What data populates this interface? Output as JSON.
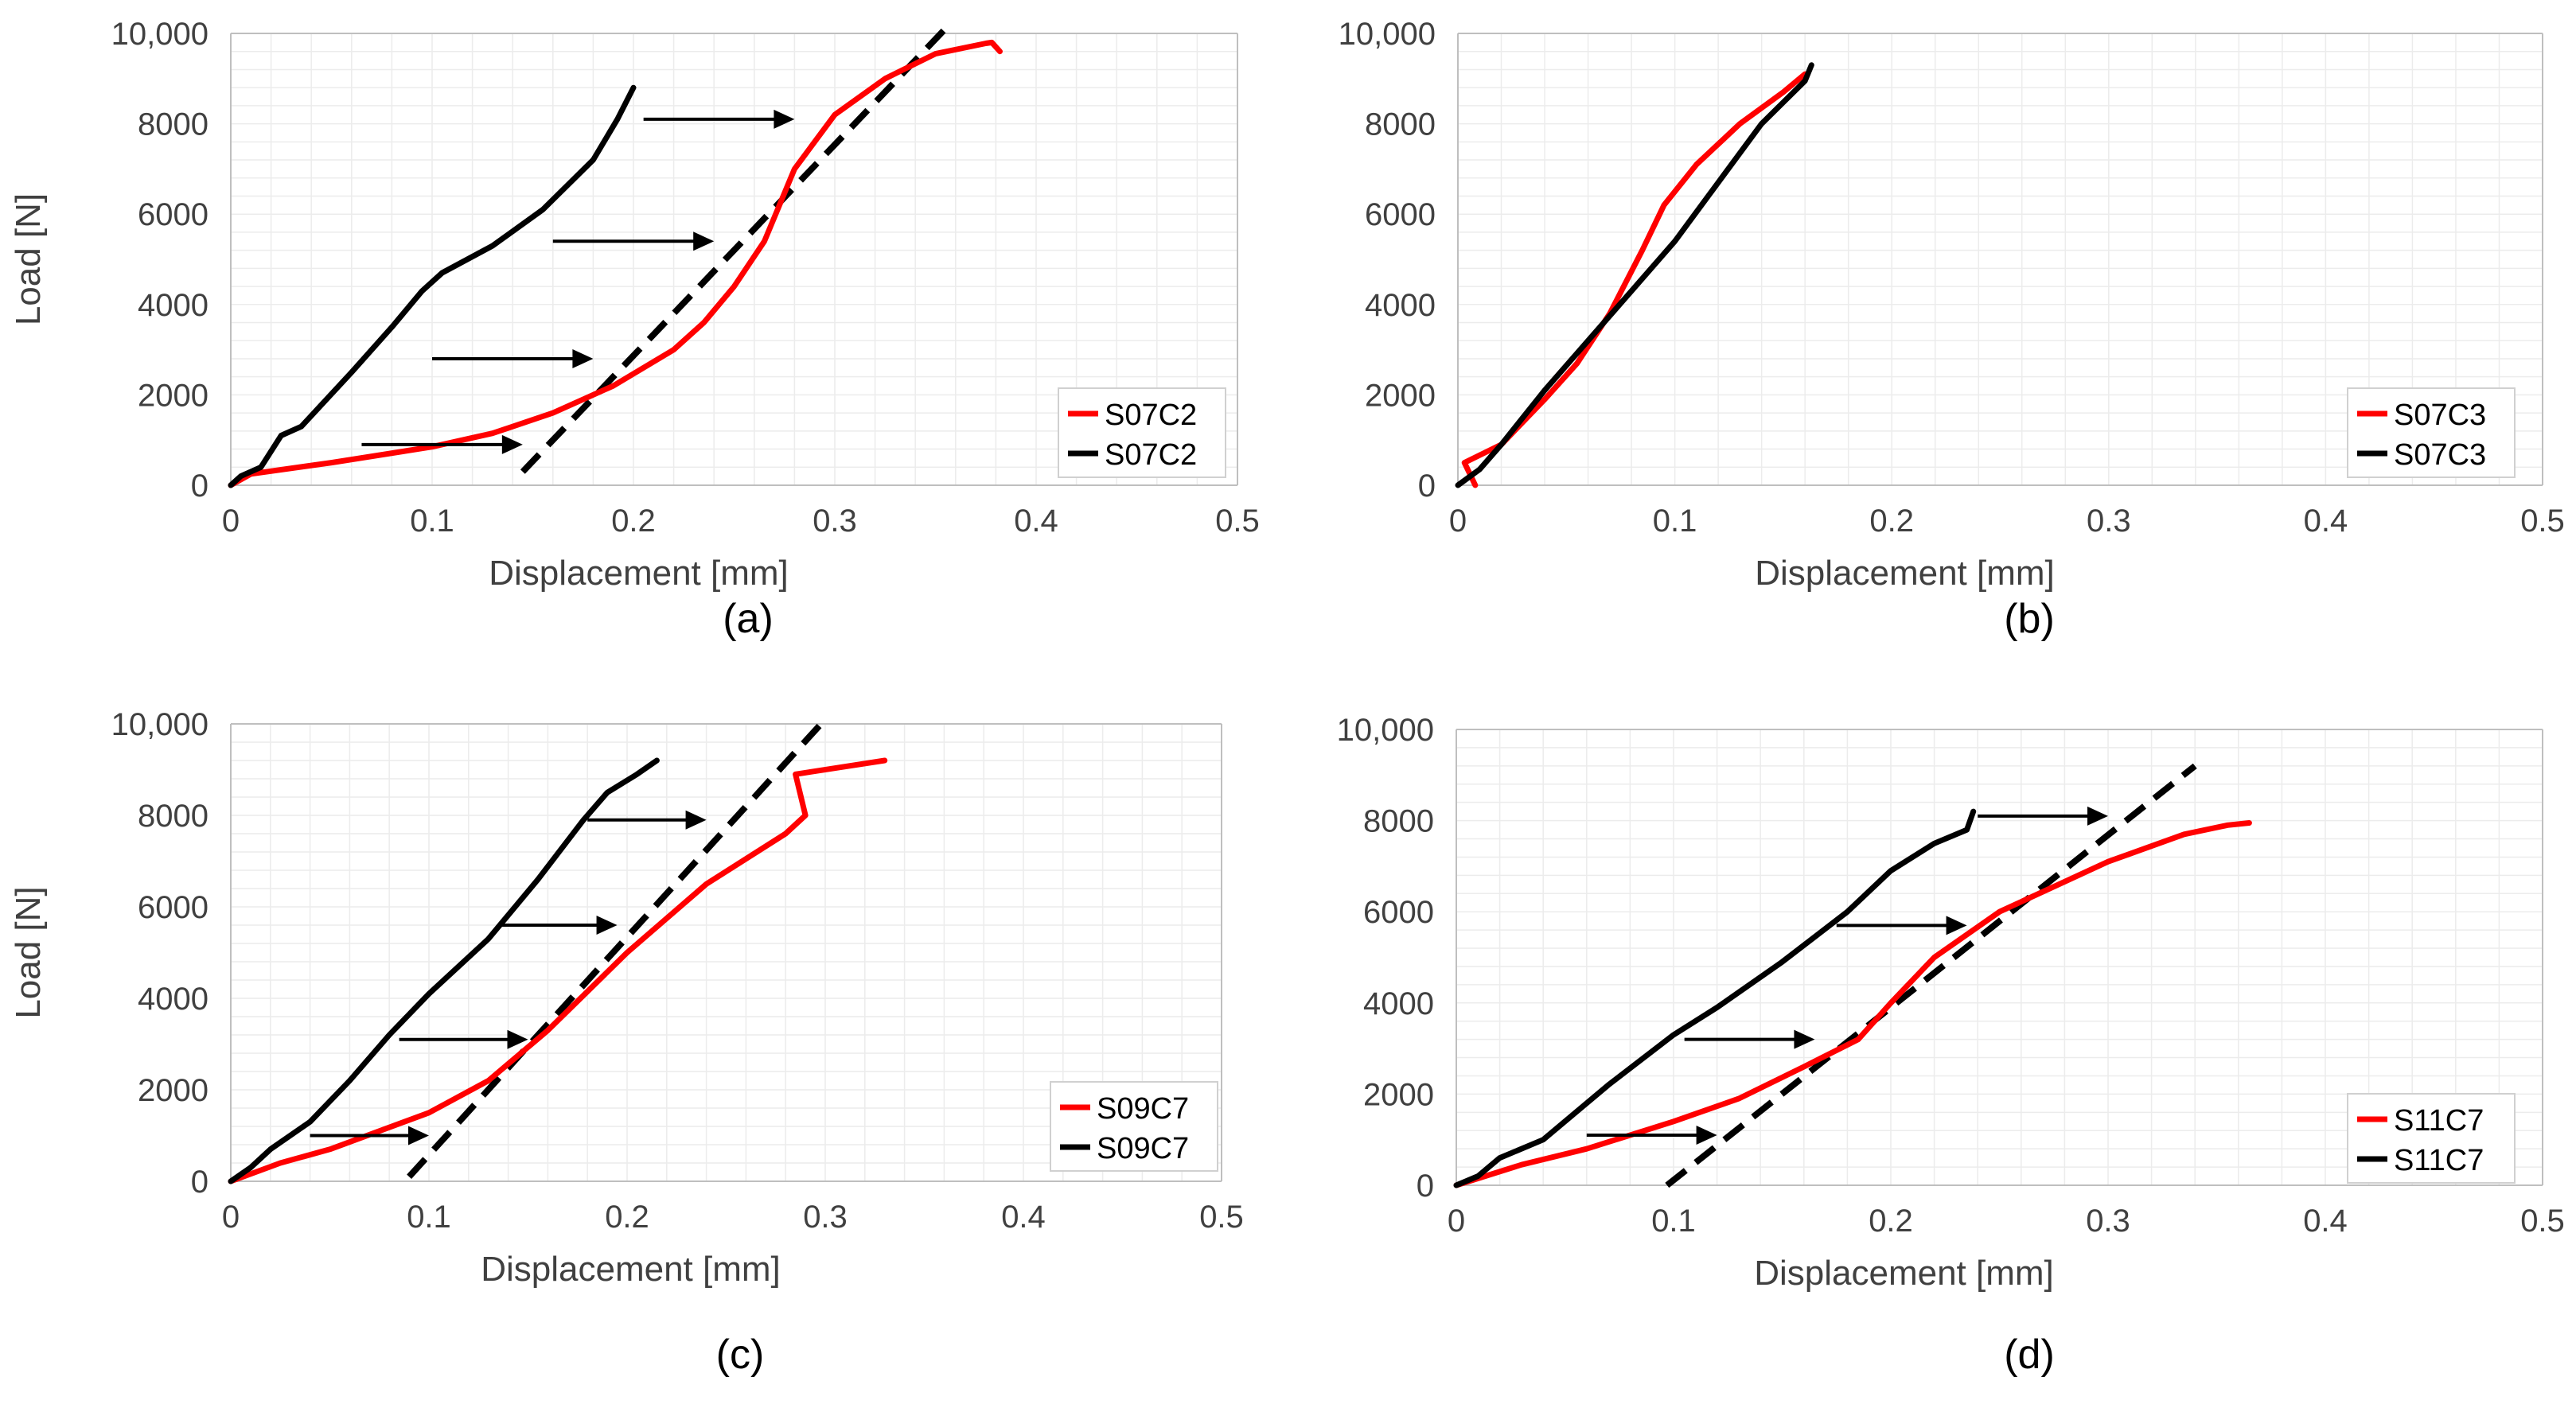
{
  "figure": {
    "panels": [
      "a",
      "b",
      "c",
      "d"
    ]
  },
  "colors": {
    "red": "#ff0000",
    "black": "#000000",
    "axis": "#bfbfbf",
    "grid": "#ececec",
    "text": "#404040"
  },
  "chart_data": [
    {
      "id": "a",
      "type": "line",
      "caption": "(a)",
      "xlabel": "Displacement [mm]",
      "ylabel": "Load [N]",
      "xlim": [
        0,
        0.5
      ],
      "ylim": [
        0,
        10000
      ],
      "xticks": [
        "0",
        "0.1",
        "0.2",
        "0.3",
        "0.4",
        "0.5"
      ],
      "yticks": [
        "0",
        "2000",
        "4000",
        "6000",
        "8000",
        "10,000"
      ],
      "legend": [
        "S07C2",
        "S07C2"
      ],
      "series": [
        {
          "name": "S07C2",
          "color": "red",
          "points": [
            [
              0.0,
              0
            ],
            [
              0.01,
              250
            ],
            [
              0.05,
              500
            ],
            [
              0.1,
              850
            ],
            [
              0.13,
              1150
            ],
            [
              0.16,
              1600
            ],
            [
              0.19,
              2200
            ],
            [
              0.22,
              3000
            ],
            [
              0.235,
              3600
            ],
            [
              0.25,
              4400
            ],
            [
              0.265,
              5400
            ],
            [
              0.28,
              7000
            ],
            [
              0.3,
              8200
            ],
            [
              0.325,
              9000
            ],
            [
              0.35,
              9550
            ],
            [
              0.375,
              9780
            ],
            [
              0.378,
              9800
            ],
            [
              0.382,
              9600
            ]
          ]
        },
        {
          "name": "S07C2",
          "color": "black",
          "points": [
            [
              0.0,
              0
            ],
            [
              0.005,
              200
            ],
            [
              0.015,
              400
            ],
            [
              0.025,
              1100
            ],
            [
              0.035,
              1300
            ],
            [
              0.06,
              2500
            ],
            [
              0.08,
              3500
            ],
            [
              0.095,
              4300
            ],
            [
              0.105,
              4700
            ],
            [
              0.13,
              5300
            ],
            [
              0.155,
              6100
            ],
            [
              0.18,
              7200
            ],
            [
              0.192,
              8100
            ],
            [
              0.2,
              8800
            ]
          ]
        }
      ],
      "dashed": [
        [
          0.145,
          300
        ],
        [
          0.357,
          10200
        ]
      ],
      "arrows": [
        [
          0.065,
          900,
          0.145,
          900
        ],
        [
          0.1,
          2800,
          0.18,
          2800
        ],
        [
          0.16,
          5400,
          0.24,
          5400
        ],
        [
          0.205,
          8100,
          0.28,
          8100
        ]
      ]
    },
    {
      "id": "b",
      "type": "line",
      "caption": "(b)",
      "xlabel": "Displacement [mm]",
      "ylabel": "",
      "xlim": [
        0,
        0.5
      ],
      "ylim": [
        0,
        10000
      ],
      "xticks": [
        "0",
        "0.1",
        "0.2",
        "0.3",
        "0.4",
        "0.5"
      ],
      "yticks": [
        "0",
        "2000",
        "4000",
        "6000",
        "8000",
        "10,000"
      ],
      "legend": [
        "S07C3",
        "S07C3"
      ],
      "series": [
        {
          "name": "S07C3",
          "color": "red",
          "points": [
            [
              0.008,
              0
            ],
            [
              0.006,
              200
            ],
            [
              0.003,
              500
            ],
            [
              0.02,
              900
            ],
            [
              0.04,
              1900
            ],
            [
              0.055,
              2700
            ],
            [
              0.07,
              3800
            ],
            [
              0.085,
              5200
            ],
            [
              0.095,
              6200
            ],
            [
              0.11,
              7100
            ],
            [
              0.13,
              8000
            ],
            [
              0.15,
              8700
            ],
            [
              0.16,
              9100
            ]
          ]
        },
        {
          "name": "S07C3",
          "color": "black",
          "points": [
            [
              0.0,
              0
            ],
            [
              0.01,
              350
            ],
            [
              0.02,
              900
            ],
            [
              0.04,
              2100
            ],
            [
              0.06,
              3200
            ],
            [
              0.08,
              4300
            ],
            [
              0.1,
              5400
            ],
            [
              0.12,
              6700
            ],
            [
              0.14,
              8000
            ],
            [
              0.16,
              8950
            ],
            [
              0.163,
              9300
            ]
          ]
        }
      ]
    },
    {
      "id": "c",
      "type": "line",
      "caption": "(c)",
      "xlabel": "Displacement [mm]",
      "ylabel": "Load [N]",
      "xlim": [
        0,
        0.5
      ],
      "ylim": [
        0,
        10000
      ],
      "xticks": [
        "0",
        "0.1",
        "0.2",
        "0.3",
        "0.4",
        "0.5"
      ],
      "yticks": [
        "0",
        "2000",
        "4000",
        "6000",
        "8000",
        "10,000"
      ],
      "legend": [
        "S09C7",
        "S09C7"
      ],
      "series": [
        {
          "name": "S09C7",
          "color": "red",
          "points": [
            [
              0.0,
              0
            ],
            [
              0.025,
              400
            ],
            [
              0.05,
              700
            ],
            [
              0.1,
              1500
            ],
            [
              0.13,
              2200
            ],
            [
              0.16,
              3300
            ],
            [
              0.2,
              5000
            ],
            [
              0.24,
              6500
            ],
            [
              0.28,
              7600
            ],
            [
              0.29,
              8000
            ],
            [
              0.285,
              8900
            ],
            [
              0.33,
              9200
            ]
          ]
        },
        {
          "name": "S09C7",
          "color": "black",
          "points": [
            [
              0.0,
              0
            ],
            [
              0.01,
              300
            ],
            [
              0.02,
              700
            ],
            [
              0.03,
              1000
            ],
            [
              0.04,
              1300
            ],
            [
              0.06,
              2200
            ],
            [
              0.08,
              3200
            ],
            [
              0.1,
              4100
            ],
            [
              0.13,
              5300
            ],
            [
              0.155,
              6600
            ],
            [
              0.178,
              7900
            ],
            [
              0.19,
              8500
            ],
            [
              0.205,
              8900
            ],
            [
              0.215,
              9200
            ]
          ]
        }
      ],
      "dashed": [
        [
          0.09,
          100
        ],
        [
          0.3,
          10100
        ]
      ],
      "arrows": [
        [
          0.04,
          1000,
          0.1,
          1000
        ],
        [
          0.085,
          3100,
          0.15,
          3100
        ],
        [
          0.135,
          5600,
          0.195,
          5600
        ],
        [
          0.18,
          7900,
          0.24,
          7900
        ]
      ]
    },
    {
      "id": "d",
      "type": "line",
      "caption": "(d)",
      "xlabel": "Displacement [mm]",
      "ylabel": "",
      "xlim": [
        0,
        0.5
      ],
      "ylim": [
        0,
        10000
      ],
      "xticks": [
        "0",
        "0.1",
        "0.2",
        "0.3",
        "0.4",
        "0.5"
      ],
      "yticks": [
        "0",
        "2000",
        "4000",
        "6000",
        "8000",
        "10,000"
      ],
      "legend": [
        "S11C7",
        "S11C7"
      ],
      "series": [
        {
          "name": "S11C7",
          "color": "red",
          "points": [
            [
              0.0,
              0
            ],
            [
              0.03,
              450
            ],
            [
              0.06,
              800
            ],
            [
              0.1,
              1400
            ],
            [
              0.13,
              1900
            ],
            [
              0.16,
              2600
            ],
            [
              0.185,
              3200
            ],
            [
              0.2,
              4000
            ],
            [
              0.22,
              5000
            ],
            [
              0.25,
              6000
            ],
            [
              0.3,
              7100
            ],
            [
              0.335,
              7700
            ],
            [
              0.355,
              7900
            ],
            [
              0.365,
              7950
            ]
          ]
        },
        {
          "name": "S11C7",
          "color": "black",
          "points": [
            [
              0.0,
              0
            ],
            [
              0.01,
              200
            ],
            [
              0.02,
              600
            ],
            [
              0.04,
              1000
            ],
            [
              0.07,
              2200
            ],
            [
              0.1,
              3300
            ],
            [
              0.12,
              3900
            ],
            [
              0.15,
              4900
            ],
            [
              0.18,
              6000
            ],
            [
              0.2,
              6900
            ],
            [
              0.22,
              7500
            ],
            [
              0.235,
              7800
            ],
            [
              0.238,
              8200
            ]
          ]
        }
      ],
      "dashed": [
        [
          0.097,
          0
        ],
        [
          0.34,
          9200
        ]
      ],
      "arrows": [
        [
          0.06,
          1100,
          0.12,
          1100
        ],
        [
          0.105,
          3200,
          0.165,
          3200
        ],
        [
          0.175,
          5700,
          0.235,
          5700
        ],
        [
          0.24,
          8100,
          0.3,
          8100
        ]
      ]
    }
  ]
}
